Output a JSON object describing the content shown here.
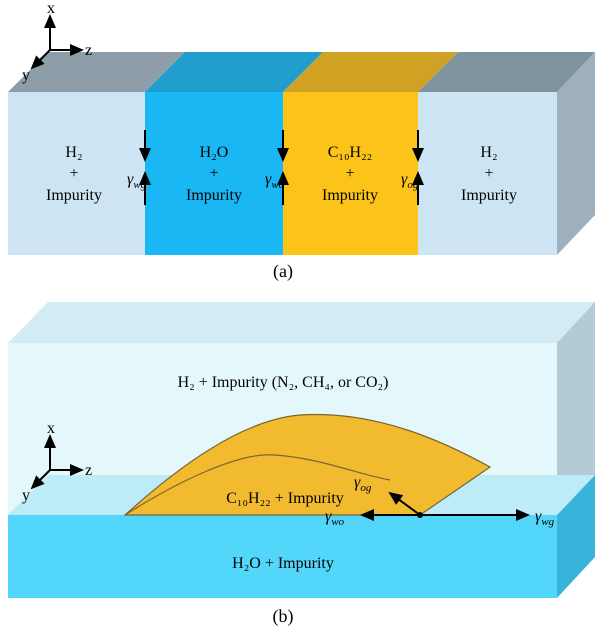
{
  "panel_a": {
    "axes": {
      "x": "x",
      "y": "y",
      "z": "z"
    },
    "regions": [
      {
        "line1": "H₂",
        "line2": "+",
        "line3": "Impurity"
      },
      {
        "line1": "H₂O",
        "line2": "+",
        "line3": "Impurity"
      },
      {
        "line1": "C₁₀H₂₂",
        "line2": "+",
        "line3": "Impurity"
      },
      {
        "line1": "H₂",
        "line2": "+",
        "line3": "Impurity"
      }
    ],
    "tensions": [
      {
        "base": "γ",
        "sub": "wg"
      },
      {
        "base": "γ",
        "sub": "wo"
      },
      {
        "base": "γ",
        "sub": "og"
      }
    ],
    "caption": "(a)"
  },
  "panel_b": {
    "axes": {
      "x": "x",
      "y": "y",
      "z": "z"
    },
    "gas_label": "H₂ + Impurity (N₂, CH₄, or CO₂)",
    "oil_label": "C₁₀H₂₂ + Impurity",
    "water_label": "H₂O + Impurity",
    "tensions": [
      {
        "base": "γ",
        "sub": "og"
      },
      {
        "base": "γ",
        "sub": "wo"
      },
      {
        "base": "γ",
        "sub": "wg"
      }
    ],
    "caption": "(b)"
  }
}
